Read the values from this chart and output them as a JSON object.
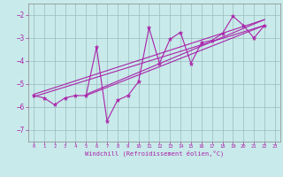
{
  "xlabel": "Windchill (Refroidissement éolien,°C)",
  "background_color": "#c8eaea",
  "line_color": "#aa22aa",
  "grid_color": "#99bbbb",
  "xlim": [
    -0.5,
    23.5
  ],
  "ylim": [
    -7.5,
    -1.5
  ],
  "yticks": [
    -7,
    -6,
    -5,
    -4,
    -3,
    -2
  ],
  "xticks": [
    0,
    1,
    2,
    3,
    4,
    5,
    6,
    7,
    8,
    9,
    10,
    11,
    12,
    13,
    14,
    15,
    16,
    17,
    18,
    19,
    20,
    21,
    22,
    23
  ],
  "series": [
    [
      0,
      -5.5
    ],
    [
      1,
      -5.6
    ],
    [
      2,
      -5.9
    ],
    [
      3,
      -5.6
    ],
    [
      4,
      -5.5
    ],
    [
      5,
      -5.5
    ],
    [
      6,
      -3.4
    ],
    [
      7,
      -6.6
    ],
    [
      8,
      -5.7
    ],
    [
      9,
      -5.5
    ],
    [
      10,
      -4.9
    ],
    [
      11,
      -2.55
    ],
    [
      12,
      -4.1
    ],
    [
      13,
      -3.05
    ],
    [
      14,
      -2.75
    ],
    [
      15,
      -4.1
    ],
    [
      16,
      -3.2
    ],
    [
      17,
      -3.1
    ],
    [
      18,
      -2.8
    ],
    [
      19,
      -2.05
    ],
    [
      20,
      -2.45
    ],
    [
      21,
      -3.0
    ],
    [
      22,
      -2.45
    ]
  ],
  "linear_series1": [
    [
      0,
      -5.55
    ],
    [
      22,
      -2.45
    ]
  ],
  "linear_series2": [
    [
      0,
      -5.45
    ],
    [
      22,
      -2.2
    ]
  ],
  "linear_series3": [
    [
      5,
      -5.5
    ],
    [
      22,
      -2.45
    ]
  ],
  "linear_series4": [
    [
      5,
      -5.45
    ],
    [
      22,
      -2.2
    ]
  ]
}
